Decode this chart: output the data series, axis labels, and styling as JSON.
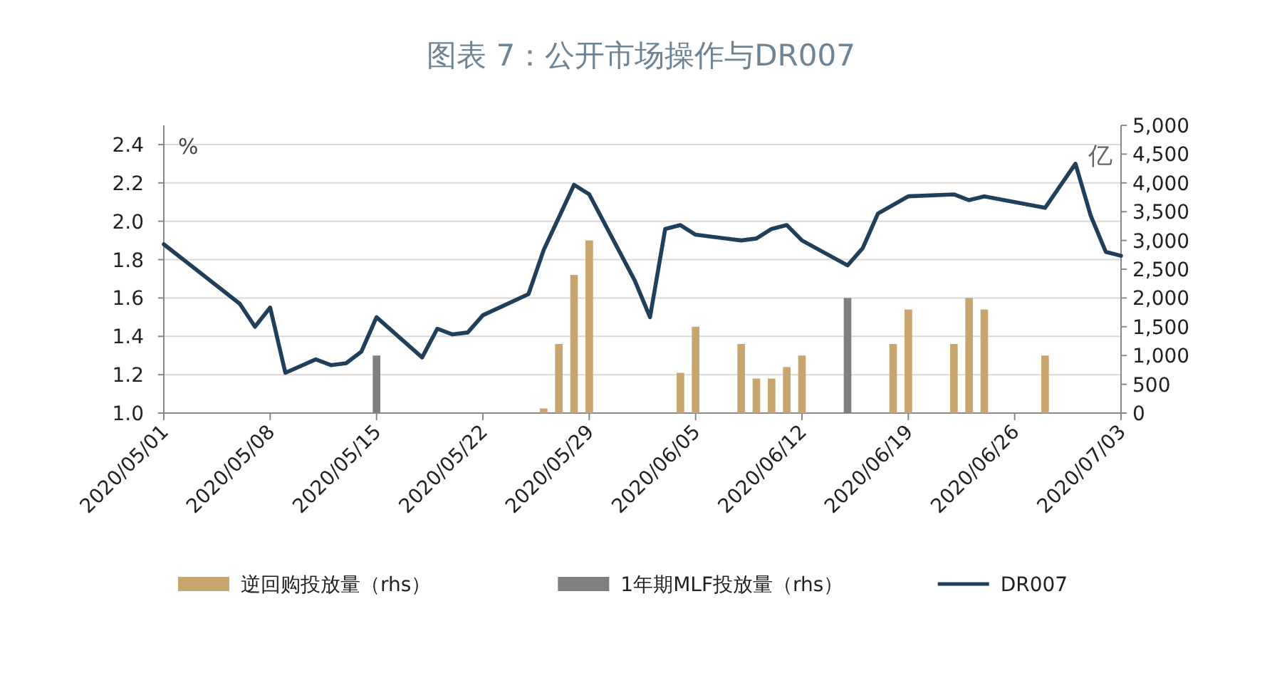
{
  "chart_data": {
    "type": "bar",
    "title": "图表 7：公开市场操作与DR007",
    "ylabel": "%",
    "y2label": "亿",
    "xlim": [
      "2020-05-01",
      "2020-07-03"
    ],
    "xticks": [
      {
        "value": "2020-05-01",
        "label": "2020/05/01"
      },
      {
        "value": "2020-05-08",
        "label": "2020/05/08"
      },
      {
        "value": "2020-05-15",
        "label": "2020/05/15"
      },
      {
        "value": "2020-05-22",
        "label": "2020/05/22"
      },
      {
        "value": "2020-05-29",
        "label": "2020/05/29"
      },
      {
        "value": "2020-06-05",
        "label": "2020/06/05"
      },
      {
        "value": "2020-06-12",
        "label": "2020/06/12"
      },
      {
        "value": "2020-06-19",
        "label": "2020/06/19"
      },
      {
        "value": "2020-06-26",
        "label": "2020/06/26"
      },
      {
        "value": "2020-07-03",
        "label": "2020/07/03"
      }
    ],
    "ylim": [
      1.0,
      2.5
    ],
    "yticks": [
      {
        "value": 1.0,
        "label": "1.0"
      },
      1.2,
      1.4,
      1.6,
      1.8,
      {
        "value": 2.0,
        "label": "2.0"
      },
      2.2,
      2.4
    ],
    "y2lim": [
      0,
      5000
    ],
    "y2ticks": [
      0,
      500,
      {
        "value": 1000,
        "label": "1,000"
      },
      {
        "value": 1500,
        "label": "1,500"
      },
      {
        "value": 2000,
        "label": "2,000"
      },
      {
        "value": 2500,
        "label": "2,500"
      },
      {
        "value": 3000,
        "label": "3,000"
      },
      {
        "value": 3500,
        "label": "3,500"
      },
      {
        "value": 4000,
        "label": "4,000"
      },
      {
        "value": 4500,
        "label": "4,500"
      },
      {
        "value": 5000,
        "label": "5,000"
      }
    ],
    "grid": "y",
    "legend": "bottom",
    "series": [
      {
        "name": "逆回购投放量（rhs）",
        "axis": "y2",
        "color": "#c8a46e",
        "x": [
          "2020-05-26",
          "2020-05-27",
          "2020-05-28",
          "2020-05-29",
          "2020-06-04",
          "2020-06-05",
          "2020-06-08",
          "2020-06-09",
          "2020-06-10",
          "2020-06-11",
          "2020-06-12",
          "2020-06-18",
          "2020-06-19",
          "2020-06-22",
          "2020-06-23",
          "2020-06-24",
          "2020-06-28"
        ],
        "values": [
          80,
          1200,
          2400,
          3000,
          700,
          1500,
          1200,
          600,
          600,
          800,
          1000,
          1200,
          1800,
          1200,
          2000,
          1800,
          1000
        ]
      },
      {
        "name": "1年期MLF投放量（rhs）",
        "axis": "y2",
        "color": "#7f7f7f",
        "x": [
          "2020-05-15",
          "2020-06-15"
        ],
        "values": [
          1000,
          2000
        ]
      },
      {
        "name": "DR007",
        "type": "line",
        "color": "#1f3f5a",
        "x": [
          "2020-05-01",
          "2020-05-06",
          "2020-05-07",
          "2020-05-08",
          "2020-05-09",
          "2020-05-11",
          "2020-05-12",
          "2020-05-13",
          "2020-05-14",
          "2020-05-15",
          "2020-05-18",
          "2020-05-19",
          "2020-05-20",
          "2020-05-21",
          "2020-05-22",
          "2020-05-25",
          "2020-05-26",
          "2020-05-28",
          "2020-05-29",
          "2020-06-01",
          "2020-06-02",
          "2020-06-03",
          "2020-06-04",
          "2020-06-05",
          "2020-06-08",
          "2020-06-09",
          "2020-06-10",
          "2020-06-11",
          "2020-06-12",
          "2020-06-15",
          "2020-06-16",
          "2020-06-17",
          "2020-06-19",
          "2020-06-22",
          "2020-06-23",
          "2020-06-24",
          "2020-06-28",
          "2020-06-30",
          "2020-07-01",
          "2020-07-02",
          "2020-07-03"
        ],
        "values": [
          1.88,
          1.57,
          1.45,
          1.55,
          1.21,
          1.28,
          1.25,
          1.26,
          1.32,
          1.5,
          1.29,
          1.44,
          1.41,
          1.42,
          1.51,
          1.62,
          1.85,
          2.19,
          2.14,
          1.69,
          1.5,
          1.96,
          1.98,
          1.93,
          1.9,
          1.91,
          1.96,
          1.98,
          1.9,
          1.77,
          1.86,
          2.04,
          2.13,
          2.14,
          2.11,
          2.13,
          2.07,
          2.3,
          2.03,
          1.84,
          1.82
        ]
      }
    ]
  }
}
